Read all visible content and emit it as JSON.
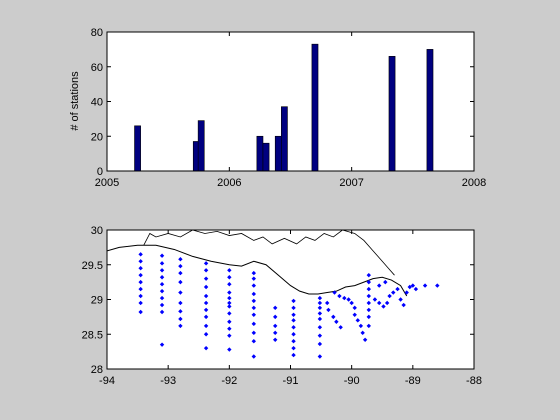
{
  "figure": {
    "background": "#cccccc"
  },
  "chart_data": [
    {
      "type": "bar",
      "title": "",
      "xlabel": "",
      "ylabel": "# of stations",
      "xlim": [
        2005,
        2008
      ],
      "ylim": [
        0,
        80
      ],
      "xticks": [
        2005,
        2006,
        2007,
        2008
      ],
      "yticks": [
        0,
        20,
        40,
        60,
        80
      ],
      "xtick_labels": [
        "2005",
        "2006",
        "2007",
        "2008"
      ],
      "ytick_labels": [
        "0",
        "20",
        "40",
        "60",
        "80"
      ],
      "bar_color": "#000080",
      "bar_width_years": 0.05,
      "x": [
        2005.25,
        2005.73,
        2005.77,
        2006.25,
        2006.3,
        2006.4,
        2006.45,
        2006.7,
        2007.33,
        2007.64
      ],
      "values": [
        26,
        17,
        29,
        20,
        16,
        20,
        37,
        73,
        66,
        70
      ],
      "grid": false
    },
    {
      "type": "scatter",
      "title": "",
      "xlabel": "",
      "ylabel": "",
      "xlim": [
        -94,
        -88
      ],
      "ylim": [
        28,
        30
      ],
      "xticks": [
        -94,
        -93,
        -92,
        -91,
        -90,
        -89,
        -88
      ],
      "yticks": [
        28,
        28.5,
        29,
        29.5,
        30
      ],
      "xtick_labels": [
        "-94",
        "-93",
        "-92",
        "-91",
        "-90",
        "-89",
        "-88"
      ],
      "ytick_labels": [
        "28",
        "28.5",
        "29",
        "29.5",
        "30"
      ],
      "marker": "diamond",
      "marker_color": "#0000ff",
      "coastline_color": "#000000",
      "grid": false,
      "points": [
        [
          -93.45,
          29.65
        ],
        [
          -93.45,
          29.55
        ],
        [
          -93.45,
          29.45
        ],
        [
          -93.45,
          29.35
        ],
        [
          -93.45,
          29.25
        ],
        [
          -93.45,
          29.15
        ],
        [
          -93.45,
          29.05
        ],
        [
          -93.45,
          28.95
        ],
        [
          -93.45,
          28.82
        ],
        [
          -93.1,
          29.63
        ],
        [
          -93.1,
          29.52
        ],
        [
          -93.1,
          29.42
        ],
        [
          -93.1,
          29.32
        ],
        [
          -93.1,
          29.22
        ],
        [
          -93.1,
          29.12
        ],
        [
          -93.1,
          29.02
        ],
        [
          -93.1,
          28.92
        ],
        [
          -93.1,
          28.82
        ],
        [
          -93.1,
          28.35
        ],
        [
          -92.8,
          29.58
        ],
        [
          -92.8,
          29.48
        ],
        [
          -92.8,
          29.38
        ],
        [
          -92.8,
          29.25
        ],
        [
          -92.8,
          29.1
        ],
        [
          -92.8,
          28.95
        ],
        [
          -92.8,
          28.83
        ],
        [
          -92.8,
          28.72
        ],
        [
          -92.8,
          28.62
        ],
        [
          -92.38,
          29.52
        ],
        [
          -92.38,
          29.42
        ],
        [
          -92.38,
          29.3
        ],
        [
          -92.38,
          29.18
        ],
        [
          -92.38,
          29.05
        ],
        [
          -92.38,
          28.95
        ],
        [
          -92.38,
          28.85
        ],
        [
          -92.38,
          28.75
        ],
        [
          -92.38,
          28.62
        ],
        [
          -92.38,
          28.5
        ],
        [
          -92.38,
          28.3
        ],
        [
          -92.0,
          29.42
        ],
        [
          -92.0,
          29.32
        ],
        [
          -92.0,
          29.22
        ],
        [
          -92.0,
          29.1
        ],
        [
          -92.0,
          29.02
        ],
        [
          -92.0,
          28.95
        ],
        [
          -92.0,
          28.9
        ],
        [
          -92.0,
          28.8
        ],
        [
          -92.0,
          28.68
        ],
        [
          -92.0,
          28.58
        ],
        [
          -92.0,
          28.48
        ],
        [
          -92.0,
          28.28
        ],
        [
          -91.6,
          29.38
        ],
        [
          -91.6,
          29.3
        ],
        [
          -91.6,
          29.2
        ],
        [
          -91.6,
          29.08
        ],
        [
          -91.6,
          28.98
        ],
        [
          -91.6,
          28.88
        ],
        [
          -91.6,
          28.78
        ],
        [
          -91.6,
          28.65
        ],
        [
          -91.6,
          28.52
        ],
        [
          -91.6,
          28.4
        ],
        [
          -91.6,
          28.18
        ],
        [
          -91.25,
          28.88
        ],
        [
          -91.25,
          28.75
        ],
        [
          -91.25,
          28.62
        ],
        [
          -91.25,
          28.52
        ],
        [
          -91.25,
          28.42
        ],
        [
          -90.95,
          28.98
        ],
        [
          -90.95,
          28.88
        ],
        [
          -90.95,
          28.78
        ],
        [
          -90.95,
          28.7
        ],
        [
          -90.95,
          28.6
        ],
        [
          -90.95,
          28.5
        ],
        [
          -90.95,
          28.4
        ],
        [
          -90.95,
          28.3
        ],
        [
          -90.95,
          28.2
        ],
        [
          -90.52,
          29.02
        ],
        [
          -90.52,
          28.95
        ],
        [
          -90.52,
          28.88
        ],
        [
          -90.52,
          28.8
        ],
        [
          -90.52,
          28.72
        ],
        [
          -90.52,
          28.6
        ],
        [
          -90.52,
          28.48
        ],
        [
          -90.52,
          28.36
        ],
        [
          -90.52,
          28.18
        ],
        [
          -90.38,
          28.85
        ],
        [
          -90.3,
          28.75
        ],
        [
          -90.25,
          28.68
        ],
        [
          -90.4,
          28.95
        ],
        [
          -90.18,
          28.6
        ],
        [
          -90.28,
          29.1
        ],
        [
          -90.2,
          29.05
        ],
        [
          -90.12,
          29.02
        ],
        [
          -90.05,
          29.0
        ],
        [
          -90.0,
          28.95
        ],
        [
          -89.95,
          28.88
        ],
        [
          -89.95,
          28.78
        ],
        [
          -89.9,
          28.7
        ],
        [
          -89.85,
          28.62
        ],
        [
          -89.82,
          28.52
        ],
        [
          -89.78,
          28.42
        ],
        [
          -89.72,
          29.35
        ],
        [
          -89.72,
          29.25
        ],
        [
          -89.72,
          29.15
        ],
        [
          -89.72,
          29.05
        ],
        [
          -89.72,
          28.95
        ],
        [
          -89.72,
          28.85
        ],
        [
          -89.72,
          28.75
        ],
        [
          -89.72,
          28.62
        ],
        [
          -89.62,
          29.0
        ],
        [
          -89.55,
          28.95
        ],
        [
          -89.48,
          28.9
        ],
        [
          -89.42,
          28.95
        ],
        [
          -89.38,
          29.05
        ],
        [
          -89.32,
          29.1
        ],
        [
          -89.25,
          29.15
        ],
        [
          -89.45,
          29.25
        ],
        [
          -89.55,
          29.2
        ],
        [
          -89.2,
          29.0
        ],
        [
          -89.1,
          29.1
        ],
        [
          -89.05,
          29.18
        ],
        [
          -89.0,
          29.2
        ],
        [
          -88.8,
          29.2
        ],
        [
          -88.6,
          29.2
        ],
        [
          -89.15,
          28.92
        ],
        [
          -88.95,
          29.15
        ]
      ],
      "coastline": [
        [
          -94,
          29.7
        ],
        [
          -93.8,
          29.75
        ],
        [
          -93.5,
          29.78
        ],
        [
          -93.2,
          29.78
        ],
        [
          -92.9,
          29.72
        ],
        [
          -92.6,
          29.62
        ],
        [
          -92.3,
          29.55
        ],
        [
          -92.0,
          29.5
        ],
        [
          -91.8,
          29.48
        ],
        [
          -91.6,
          29.55
        ],
        [
          -91.4,
          29.5
        ],
        [
          -91.2,
          29.35
        ],
        [
          -91.0,
          29.2
        ],
        [
          -90.85,
          29.12
        ],
        [
          -90.7,
          29.08
        ],
        [
          -90.55,
          29.08
        ],
        [
          -90.4,
          29.1
        ],
        [
          -90.25,
          29.12
        ],
        [
          -90.1,
          29.18
        ],
        [
          -89.95,
          29.2
        ],
        [
          -89.8,
          29.25
        ],
        [
          -89.65,
          29.3
        ],
        [
          -89.5,
          29.32
        ],
        [
          -89.35,
          29.28
        ],
        [
          -89.2,
          29.2
        ],
        [
          -89.1,
          29.05
        ]
      ],
      "land_outline": [
        [
          -93.4,
          29.78
        ],
        [
          -93.3,
          29.95
        ],
        [
          -93.2,
          29.9
        ],
        [
          -93.0,
          29.95
        ],
        [
          -92.8,
          29.9
        ],
        [
          -92.6,
          30.0
        ],
        [
          -92.4,
          29.95
        ],
        [
          -92.2,
          29.98
        ],
        [
          -92.0,
          29.92
        ],
        [
          -91.8,
          29.95
        ],
        [
          -91.6,
          29.85
        ],
        [
          -91.45,
          29.9
        ],
        [
          -91.3,
          29.8
        ],
        [
          -91.1,
          29.88
        ],
        [
          -90.9,
          29.8
        ],
        [
          -90.75,
          29.9
        ],
        [
          -90.6,
          29.85
        ],
        [
          -90.45,
          29.95
        ],
        [
          -90.3,
          29.9
        ],
        [
          -90.15,
          30.0
        ],
        [
          -89.95,
          29.95
        ],
        [
          -89.8,
          29.85
        ],
        [
          -89.65,
          29.7
        ],
        [
          -89.5,
          29.55
        ],
        [
          -89.4,
          29.45
        ],
        [
          -89.3,
          29.35
        ]
      ]
    }
  ]
}
